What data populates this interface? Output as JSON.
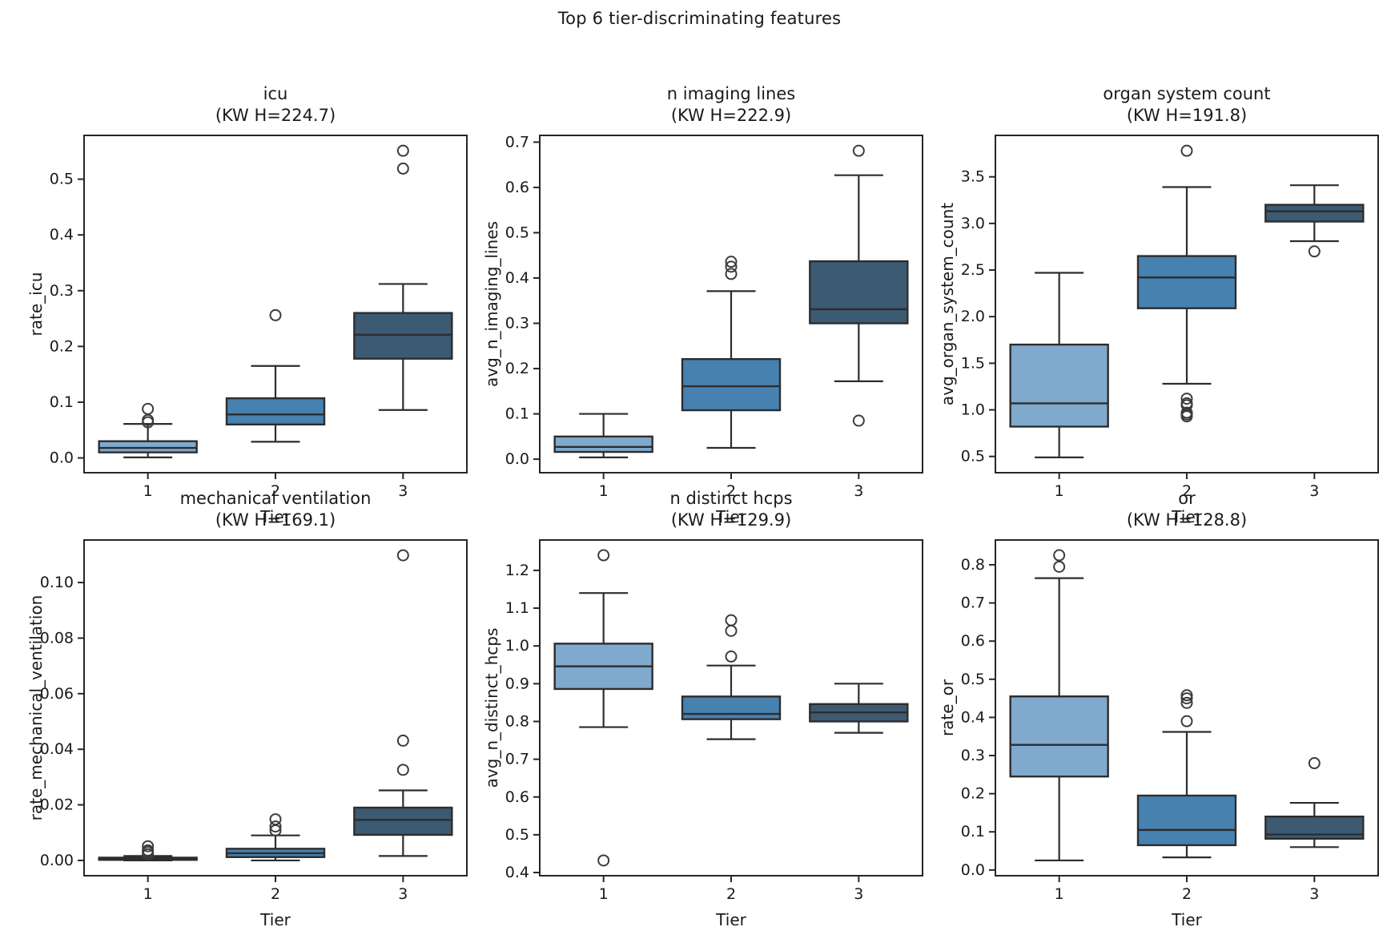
{
  "suptitle": "Top 6 tier-discriminating features",
  "colors": {
    "tier_fills": [
      "#7FA9CD",
      "#4781B0",
      "#3D5A73"
    ],
    "box_line": "#2d2d2d",
    "spine": "#262626",
    "text": "#1a1a1a"
  },
  "chart_data": [
    {
      "type": "box",
      "id": "icu",
      "title": "icu",
      "subtitle": "(KW H=224.7)",
      "xlabel": "Tier",
      "ylabel": "rate_icu",
      "categories": [
        "1",
        "2",
        "3"
      ],
      "ylim": [
        -0.0265,
        0.5785
      ],
      "yticks": {
        "values": [
          0.0,
          0.1,
          0.2,
          0.3,
          0.4,
          0.5
        ],
        "labels": [
          "0.0",
          "0.1",
          "0.2",
          "0.3",
          "0.4",
          "0.5"
        ]
      },
      "boxes": [
        {
          "tier": "1",
          "whislo": 0.001,
          "q1": 0.01,
          "med": 0.018,
          "q3": 0.03,
          "whishi": 0.061,
          "outliers": [
            0.064,
            0.068,
            0.088
          ]
        },
        {
          "tier": "2",
          "whislo": 0.029,
          "q1": 0.06,
          "med": 0.078,
          "q3": 0.107,
          "whishi": 0.165,
          "outliers": [
            0.256
          ]
        },
        {
          "tier": "3",
          "whislo": 0.086,
          "q1": 0.178,
          "med": 0.221,
          "q3": 0.26,
          "whishi": 0.312,
          "outliers": [
            0.519,
            0.551
          ]
        }
      ]
    },
    {
      "type": "box",
      "id": "n_imaging_lines",
      "title": "n imaging lines",
      "subtitle": "(KW H=222.9)",
      "xlabel": "Tier",
      "ylabel": "avg_n_imaging_lines",
      "categories": [
        "1",
        "2",
        "3"
      ],
      "ylim": [
        -0.0299,
        0.7149
      ],
      "yticks": {
        "values": [
          0.0,
          0.1,
          0.2,
          0.3,
          0.4,
          0.5,
          0.6,
          0.7
        ],
        "labels": [
          "0.0",
          "0.1",
          "0.2",
          "0.3",
          "0.4",
          "0.5",
          "0.6",
          "0.7"
        ]
      },
      "boxes": [
        {
          "tier": "1",
          "whislo": 0.004,
          "q1": 0.016,
          "med": 0.027,
          "q3": 0.05,
          "whishi": 0.1,
          "outliers": []
        },
        {
          "tier": "2",
          "whislo": 0.025,
          "q1": 0.108,
          "med": 0.161,
          "q3": 0.221,
          "whishi": 0.371,
          "outliers": [
            0.409,
            0.425,
            0.436
          ]
        },
        {
          "tier": "3",
          "whislo": 0.172,
          "q1": 0.3,
          "med": 0.331,
          "q3": 0.437,
          "whishi": 0.627,
          "outliers": [
            0.085,
            0.681
          ]
        }
      ]
    },
    {
      "type": "box",
      "id": "organ_system_count",
      "title": "organ system count",
      "subtitle": "(KW H=191.8)",
      "xlabel": "Tier",
      "ylabel": "avg_organ_system_count",
      "categories": [
        "1",
        "2",
        "3"
      ],
      "ylim": [
        0.3255,
        3.9445
      ],
      "yticks": {
        "values": [
          0.5,
          1.0,
          1.5,
          2.0,
          2.5,
          3.0,
          3.5
        ],
        "labels": [
          "0.5",
          "1.0",
          "1.5",
          "2.0",
          "2.5",
          "3.0",
          "3.5"
        ]
      },
      "boxes": [
        {
          "tier": "1",
          "whislo": 0.49,
          "q1": 0.82,
          "med": 1.07,
          "q3": 1.7,
          "whishi": 2.47,
          "outliers": []
        },
        {
          "tier": "2",
          "whislo": 1.28,
          "q1": 2.09,
          "med": 2.42,
          "q3": 2.65,
          "whishi": 3.39,
          "outliers": [
            3.78,
            1.12,
            1.07,
            1.05,
            0.97,
            0.95,
            0.93
          ]
        },
        {
          "tier": "3",
          "whislo": 2.81,
          "q1": 3.02,
          "med": 3.13,
          "q3": 3.2,
          "whishi": 3.41,
          "outliers": [
            2.7
          ]
        }
      ]
    },
    {
      "type": "box",
      "id": "mechanical_ventilation",
      "title": "mechanical ventilation",
      "subtitle": "(KW H=169.1)",
      "xlabel": "Tier",
      "ylabel": "rate_mechanical_ventilation",
      "categories": [
        "1",
        "2",
        "3"
      ],
      "ylim": [
        -0.0055,
        0.1153
      ],
      "yticks": {
        "values": [
          0.0,
          0.02,
          0.04,
          0.06,
          0.08,
          0.1
        ],
        "labels": [
          "0.00",
          "0.02",
          "0.04",
          "0.06",
          "0.08",
          "0.10"
        ]
      },
      "boxes": [
        {
          "tier": "1",
          "whislo": 0.0,
          "q1": 0.0002,
          "med": 0.0005,
          "q3": 0.001,
          "whishi": 0.0016,
          "outliers": [
            0.0022,
            0.003,
            0.0036,
            0.0051
          ]
        },
        {
          "tier": "2",
          "whislo": 0.0,
          "q1": 0.0012,
          "med": 0.0026,
          "q3": 0.0042,
          "whishi": 0.009,
          "outliers": [
            0.0108,
            0.0122,
            0.0148
          ]
        },
        {
          "tier": "3",
          "whislo": 0.0016,
          "q1": 0.0092,
          "med": 0.0146,
          "q3": 0.019,
          "whishi": 0.0252,
          "outliers": [
            0.0326,
            0.0431,
            0.1098
          ]
        }
      ]
    },
    {
      "type": "box",
      "id": "n_distinct_hcps",
      "title": "n distinct hcps",
      "subtitle": "(KW H=129.9)",
      "xlabel": "Tier",
      "ylabel": "avg_n_distinct_hcps",
      "categories": [
        "1",
        "2",
        "3"
      ],
      "ylim": [
        0.3916,
        1.2804
      ],
      "yticks": {
        "values": [
          0.4,
          0.5,
          0.6,
          0.7,
          0.8,
          0.9,
          1.0,
          1.1,
          1.2
        ],
        "labels": [
          "0.4",
          "0.5",
          "0.6",
          "0.7",
          "0.8",
          "0.9",
          "1.0",
          "1.1",
          "1.2"
        ]
      },
      "boxes": [
        {
          "tier": "1",
          "whislo": 0.785,
          "q1": 0.886,
          "med": 0.946,
          "q3": 1.006,
          "whishi": 1.14,
          "outliers": [
            0.432,
            1.24
          ]
        },
        {
          "tier": "2",
          "whislo": 0.753,
          "q1": 0.806,
          "med": 0.82,
          "q3": 0.866,
          "whishi": 0.948,
          "outliers": [
            0.972,
            1.04,
            1.068
          ]
        },
        {
          "tier": "3",
          "whislo": 0.77,
          "q1": 0.8,
          "med": 0.824,
          "q3": 0.846,
          "whishi": 0.9,
          "outliers": []
        }
      ]
    },
    {
      "type": "box",
      "id": "or",
      "title": "or",
      "subtitle": "(KW H=128.8)",
      "xlabel": "Tier",
      "ylabel": "rate_or",
      "categories": [
        "1",
        "2",
        "3"
      ],
      "ylim": [
        -0.015,
        0.865
      ],
      "yticks": {
        "values": [
          0.0,
          0.1,
          0.2,
          0.3,
          0.4,
          0.5,
          0.6,
          0.7,
          0.8
        ],
        "labels": [
          "0.0",
          "0.1",
          "0.2",
          "0.3",
          "0.4",
          "0.5",
          "0.6",
          "0.7",
          "0.8"
        ]
      },
      "boxes": [
        {
          "tier": "1",
          "whislo": 0.025,
          "q1": 0.245,
          "med": 0.328,
          "q3": 0.455,
          "whishi": 0.765,
          "outliers": [
            0.795,
            0.825
          ]
        },
        {
          "tier": "2",
          "whislo": 0.033,
          "q1": 0.065,
          "med": 0.105,
          "q3": 0.195,
          "whishi": 0.362,
          "outliers": [
            0.39,
            0.438,
            0.45,
            0.458
          ]
        },
        {
          "tier": "3",
          "whislo": 0.06,
          "q1": 0.082,
          "med": 0.093,
          "q3": 0.14,
          "whishi": 0.176,
          "outliers": [
            0.28
          ]
        }
      ]
    }
  ]
}
